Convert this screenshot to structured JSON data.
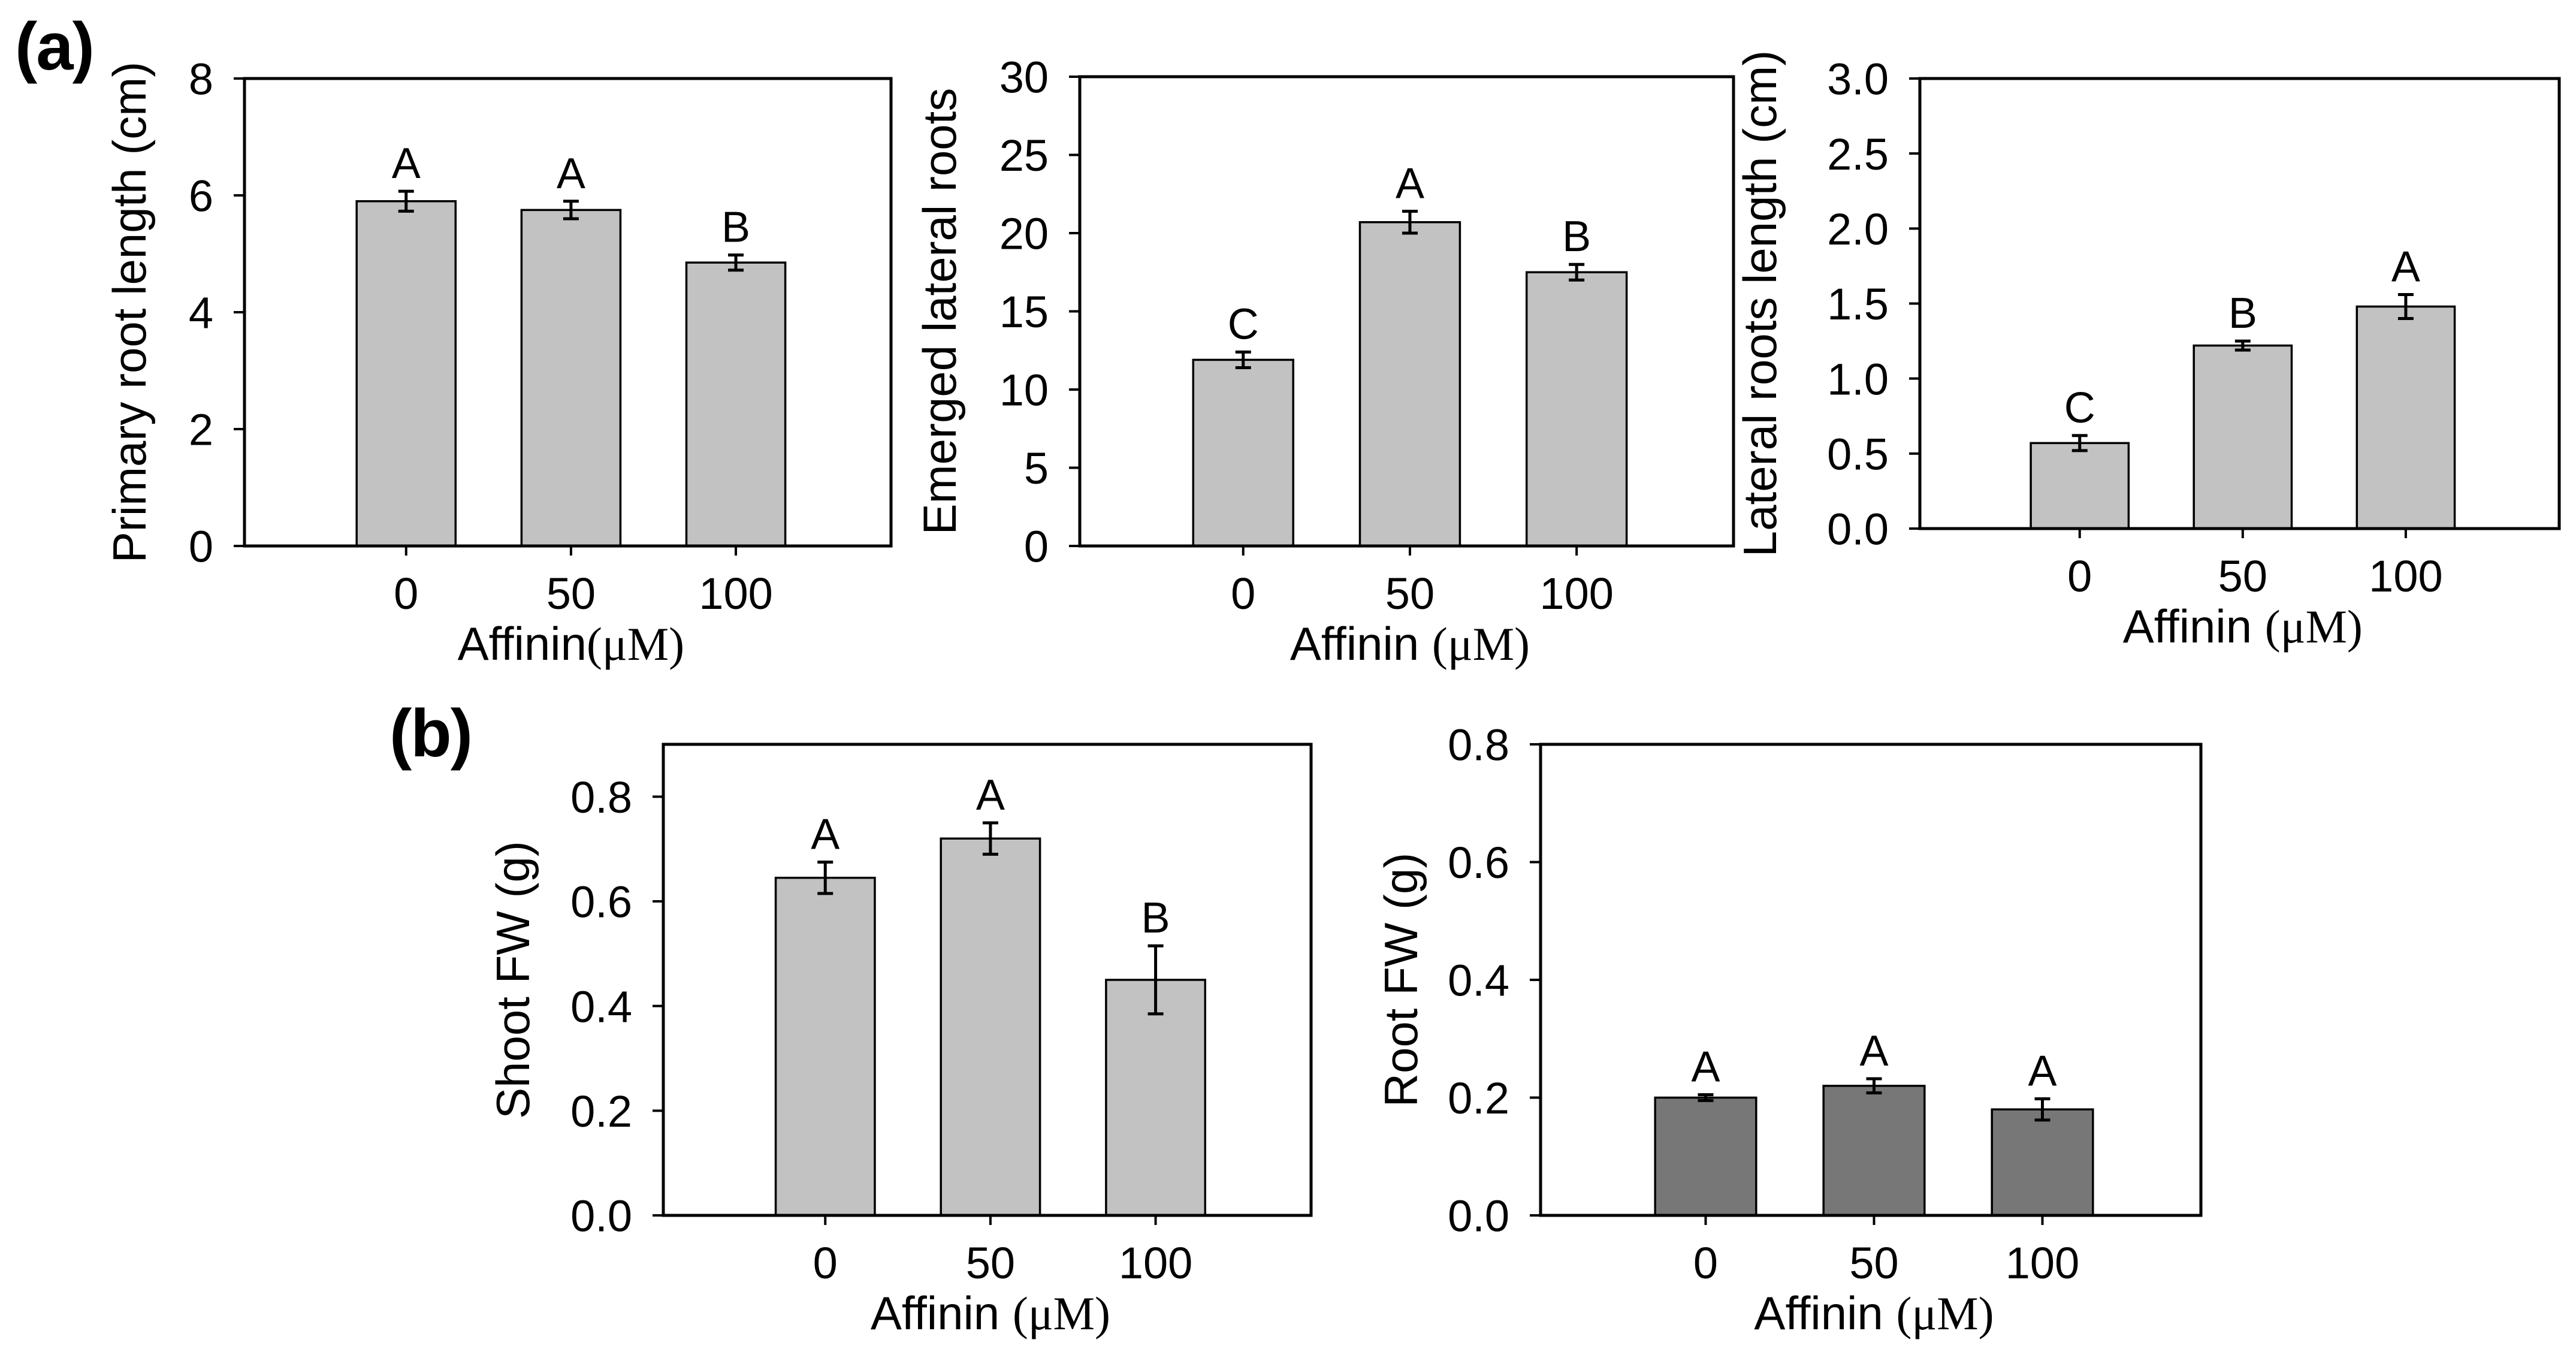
{
  "figure": {
    "background": "#ffffff",
    "panels": {
      "a": "(a)",
      "b": "(b)"
    }
  },
  "chart_data": [
    {
      "type": "bar",
      "title": "",
      "ylabel": "Primary root length (cm)",
      "xlabel": "Affinin(μM)",
      "categories": [
        "0",
        "50",
        "100"
      ],
      "values": [
        5.9,
        5.75,
        4.85
      ],
      "errors": [
        0.17,
        0.15,
        0.13
      ],
      "sig_letters": [
        "A",
        "A",
        "B"
      ],
      "ylim": [
        0,
        8
      ],
      "yticks": [
        0,
        2,
        4,
        6,
        8
      ],
      "ytick_labels": [
        "0",
        "2",
        "4",
        "6",
        "8"
      ],
      "bar_color": "#c2c2c2",
      "bar_border_color": "#000000",
      "grid": false,
      "legend": null
    },
    {
      "type": "bar",
      "title": "",
      "ylabel": "Emerged lateral roots",
      "xlabel": "Affinin (μM)",
      "categories": [
        "0",
        "50",
        "100"
      ],
      "values": [
        11.9,
        20.7,
        17.5
      ],
      "errors": [
        0.5,
        0.7,
        0.5
      ],
      "sig_letters": [
        "C",
        "A",
        "B"
      ],
      "ylim": [
        0,
        30
      ],
      "yticks": [
        0,
        5,
        10,
        15,
        20,
        25,
        30
      ],
      "ytick_labels": [
        "0",
        "5",
        "10",
        "15",
        "20",
        "25",
        "30"
      ],
      "bar_color": "#c2c2c2",
      "bar_border_color": "#000000",
      "grid": false,
      "legend": null
    },
    {
      "type": "bar",
      "title": "",
      "ylabel": "Lateral roots length (cm)",
      "xlabel": "Affinin (μM)",
      "categories": [
        "0",
        "50",
        "100"
      ],
      "values": [
        0.57,
        1.22,
        1.48
      ],
      "errors": [
        0.05,
        0.03,
        0.08
      ],
      "sig_letters": [
        "C",
        "B",
        "A"
      ],
      "ylim": [
        0,
        3.0
      ],
      "yticks": [
        0,
        0.5,
        1.0,
        1.5,
        2.0,
        2.5,
        3.0
      ],
      "ytick_labels": [
        "0.0",
        "0.5",
        "1.0",
        "1.5",
        "2.0",
        "2.5",
        "3.0"
      ],
      "bar_color": "#c2c2c2",
      "bar_border_color": "#000000",
      "grid": false,
      "legend": null
    },
    {
      "type": "bar",
      "title": "",
      "ylabel": "Shoot FW (g)",
      "xlabel": "Affinin (μM)",
      "categories": [
        "0",
        "50",
        "100"
      ],
      "values": [
        0.645,
        0.72,
        0.45
      ],
      "errors": [
        0.03,
        0.03,
        0.065
      ],
      "sig_letters": [
        "A",
        "A",
        "B"
      ],
      "ylim": [
        0,
        0.9
      ],
      "yticks": [
        0,
        0.2,
        0.4,
        0.6,
        0.8
      ],
      "ytick_labels": [
        "0.0",
        "0.2",
        "0.4",
        "0.6",
        "0.8"
      ],
      "bar_color": "#c2c2c2",
      "bar_border_color": "#000000",
      "grid": false,
      "legend": null
    },
    {
      "type": "bar",
      "title": "",
      "ylabel": "Root FW (g)",
      "xlabel": "Affinin (μM)",
      "categories": [
        "0",
        "50",
        "100"
      ],
      "values": [
        0.2,
        0.22,
        0.18
      ],
      "errors": [
        0.005,
        0.012,
        0.018
      ],
      "sig_letters": [
        "A",
        "A",
        "A"
      ],
      "ylim": [
        0,
        0.8
      ],
      "yticks": [
        0,
        0.2,
        0.4,
        0.6,
        0.8
      ],
      "ytick_labels": [
        "0.0",
        "0.2",
        "0.4",
        "0.6",
        "0.8"
      ],
      "bar_color": "#777777",
      "bar_border_color": "#000000",
      "grid": false,
      "legend": null
    }
  ]
}
